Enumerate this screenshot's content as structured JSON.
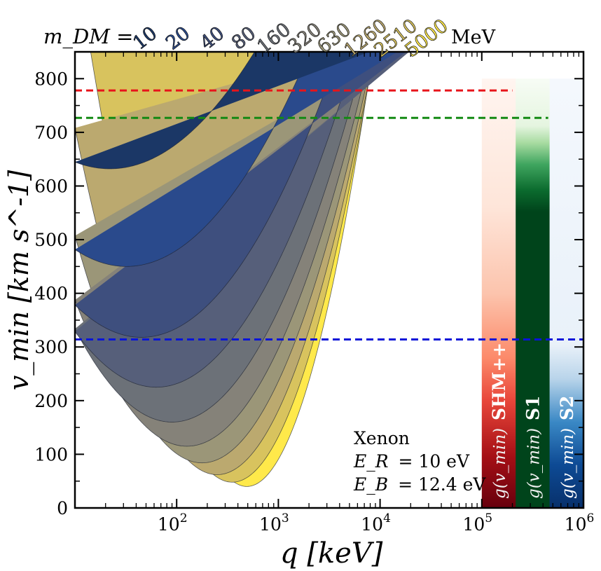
{
  "chart_data": {
    "type": "line",
    "title": "",
    "xlabel": "q [keV]",
    "ylabel": "v_min [km s^-1]",
    "xscale": "log",
    "xlim": [
      10,
      1000000
    ],
    "ylim": [
      0,
      850
    ],
    "x_ticks": [
      {
        "value": 100,
        "base": "10",
        "exp": "2"
      },
      {
        "value": 1000,
        "base": "10",
        "exp": "3"
      },
      {
        "value": 10000,
        "base": "10",
        "exp": "4"
      },
      {
        "value": 100000,
        "base": "10",
        "exp": "5"
      },
      {
        "value": 1000000,
        "base": "10",
        "exp": "6"
      }
    ],
    "y_ticks": [
      "0",
      "100",
      "200",
      "300",
      "400",
      "500",
      "600",
      "700",
      "800"
    ],
    "mass_prefix": "m_DM =",
    "mass_unit": "MeV",
    "masses": [
      "10",
      "20",
      "40",
      "80",
      "160",
      "320",
      "630",
      "1260",
      "2510",
      "5000"
    ],
    "mass_colors": [
      "#1b3766",
      "#2a4a8c",
      "#3e4f7e",
      "#565f7a",
      "#6c7178",
      "#858279",
      "#9b9678",
      "#bba96f",
      "#d8c35e",
      "#ffe94a"
    ],
    "region_minima": [
      {
        "mass": "10",
        "q_at_min": 22,
        "vmin_min": 632
      },
      {
        "mass": "20",
        "q_at_min": 32,
        "vmin_min": 450
      },
      {
        "mass": "40",
        "q_at_min": 45,
        "vmin_min": 318
      },
      {
        "mass": "80",
        "q_at_min": 63,
        "vmin_min": 225
      },
      {
        "mass": "160",
        "q_at_min": 90,
        "vmin_min": 160
      },
      {
        "mass": "320",
        "q_at_min": 126,
        "vmin_min": 115
      },
      {
        "mass": "630",
        "q_at_min": 178,
        "vmin_min": 84
      },
      {
        "mass": "1260",
        "q_at_min": 250,
        "vmin_min": 62
      },
      {
        "mass": "2510",
        "q_at_min": 352,
        "vmin_min": 48
      },
      {
        "mass": "5000",
        "q_at_min": 490,
        "vmin_min": 40
      }
    ],
    "escape_lines": [
      {
        "name": "SHM++",
        "vmin": 778,
        "color": "#e8141a",
        "q_end": 200000
      },
      {
        "name": "S1",
        "vmin": 727,
        "color": "#138a13",
        "q_end": 450000
      },
      {
        "name": "S2",
        "vmin": 314,
        "color": "#0a14d8",
        "q_end": 1000000
      }
    ],
    "gvmin_bars": [
      {
        "label": "g(v_min)",
        "name": "SHM++",
        "sup": "++",
        "colormap": "Reds"
      },
      {
        "label": "g(v_min)",
        "name": "S1",
        "sup": "",
        "colormap": "Greens"
      },
      {
        "label": "g(v_min)",
        "name": "S2",
        "sup": "",
        "colormap": "Blues"
      }
    ],
    "annotation": {
      "target": "Xenon",
      "er_lhs": "E_R",
      "er_rhs": "= 10 eV",
      "eb_lhs": "E_B",
      "eb_rhs": "= 12.4 eV"
    }
  }
}
